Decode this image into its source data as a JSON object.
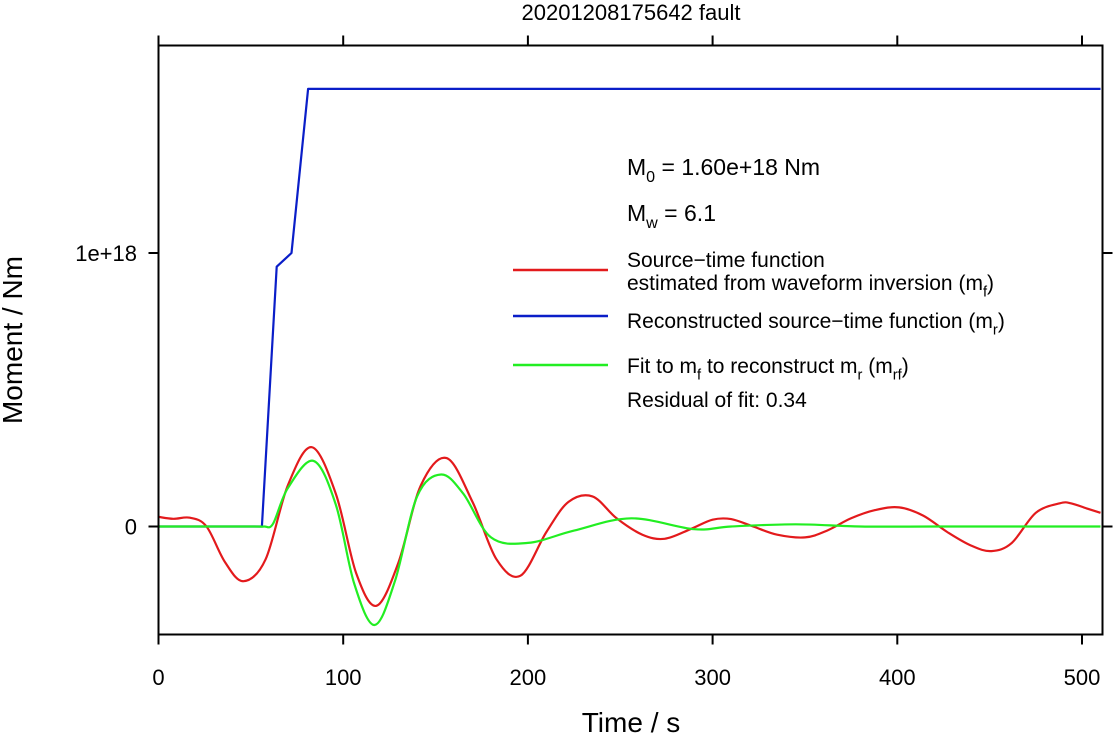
{
  "chart_data": {
    "type": "line",
    "title": "20201208175642 fault",
    "xlabel": "Time / s",
    "ylabel": "Moment / Nm",
    "xlim": [
      0,
      510
    ],
    "ylim": [
      -4e+17,
      1.76e+18
    ],
    "x_ticks": [
      0,
      100,
      200,
      300,
      400,
      500
    ],
    "x_tick_labels": [
      "0",
      "100",
      "200",
      "300",
      "400",
      "500"
    ],
    "y_ticks": [
      0,
      1e+18
    ],
    "y_tick_labels": [
      "0",
      "1e+18"
    ],
    "grid": false,
    "legend_position": "right",
    "annotations": {
      "m0": {
        "symbol": "M",
        "sub": "0",
        "text": " = 1.60e+18 Nm"
      },
      "mw": {
        "symbol": "M",
        "sub": "w",
        "text": " = 6.1"
      },
      "residual": "Residual of fit: 0.34"
    },
    "legend": [
      {
        "color": "#e31a1c",
        "segments": [
          {
            "t": "Source−time function"
          },
          {
            "t": "estimated from waveform inversion (m",
            "sub": "f",
            "after": ")"
          }
        ]
      },
      {
        "color": "#0a1ec8",
        "segments": [
          {
            "t": "Reconstructed source−time function (m",
            "sub": "r",
            "after": ")"
          }
        ]
      },
      {
        "color": "#22ee22",
        "segments": [
          {
            "t": "Fit to m",
            "sub": "f",
            "mid": " to reconstruct m",
            "sub2": "r",
            "mid2": " (m",
            "sub3": "rf",
            "after": ")"
          }
        ]
      }
    ],
    "series": [
      {
        "color": "#0a1ec8",
        "x": [
          0,
          56,
          64,
          72,
          81,
          510
        ],
        "y": [
          0,
          0,
          9.5e+17,
          1e+18,
          1.6e+18,
          1.6e+18
        ]
      },
      {
        "color": "#e31a1c",
        "x": [
          0,
          8,
          17,
          26,
          36,
          46,
          58,
          70,
          83,
          96,
          107,
          118,
          130,
          142,
          156,
          170,
          183,
          196,
          210,
          222,
          235,
          248,
          262,
          274,
          288,
          300,
          310,
          322,
          335,
          350,
          362,
          375,
          388,
          401,
          414,
          427,
          440,
          451,
          462,
          475,
          488,
          494,
          503,
          510
        ],
        "y": [
          3.5e+16,
          2.8e+16,
          3.2e+16,
          0,
          -1.3e+17,
          -2e+17,
          -1.2e+17,
          1.5e+17,
          2.9e+17,
          1.2e+17,
          -1.7e+17,
          -2.9e+17,
          -1.3e+17,
          1.5e+17,
          2.5e+17,
          9e+16,
          -1.2e+17,
          -1.8e+17,
          -2e+16,
          9e+16,
          1.1e+17,
          3e+16,
          -3e+16,
          -4.5e+16,
          -1e+16,
          2.5e+16,
          2.7e+16,
          0,
          -3e+16,
          -4e+16,
          -1.5e+16,
          3e+16,
          6e+16,
          7e+16,
          4e+16,
          -2e+16,
          -7e+16,
          -9e+16,
          -6e+16,
          5e+16,
          8.5e+16,
          8.5e+16,
          6.5e+16,
          5e+16
        ]
      },
      {
        "color": "#22ee22",
        "x": [
          0,
          50,
          57,
          62,
          70,
          84,
          96,
          106,
          117,
          128,
          140,
          153,
          165,
          180,
          200,
          225,
          256,
          290,
          310,
          345,
          380,
          420,
          510
        ],
        "y": [
          0,
          0,
          0,
          1e+16,
          1.4e+17,
          2.4e+17,
          8e+16,
          -2.1e+17,
          -3.6e+17,
          -2e+17,
          1.1e+17,
          1.9e+17,
          1.2e+17,
          -4e+16,
          -6e+16,
          -1.5e+16,
          3e+16,
          -1e+16,
          0,
          8000000000000000.0,
          0,
          0,
          0
        ]
      }
    ]
  }
}
